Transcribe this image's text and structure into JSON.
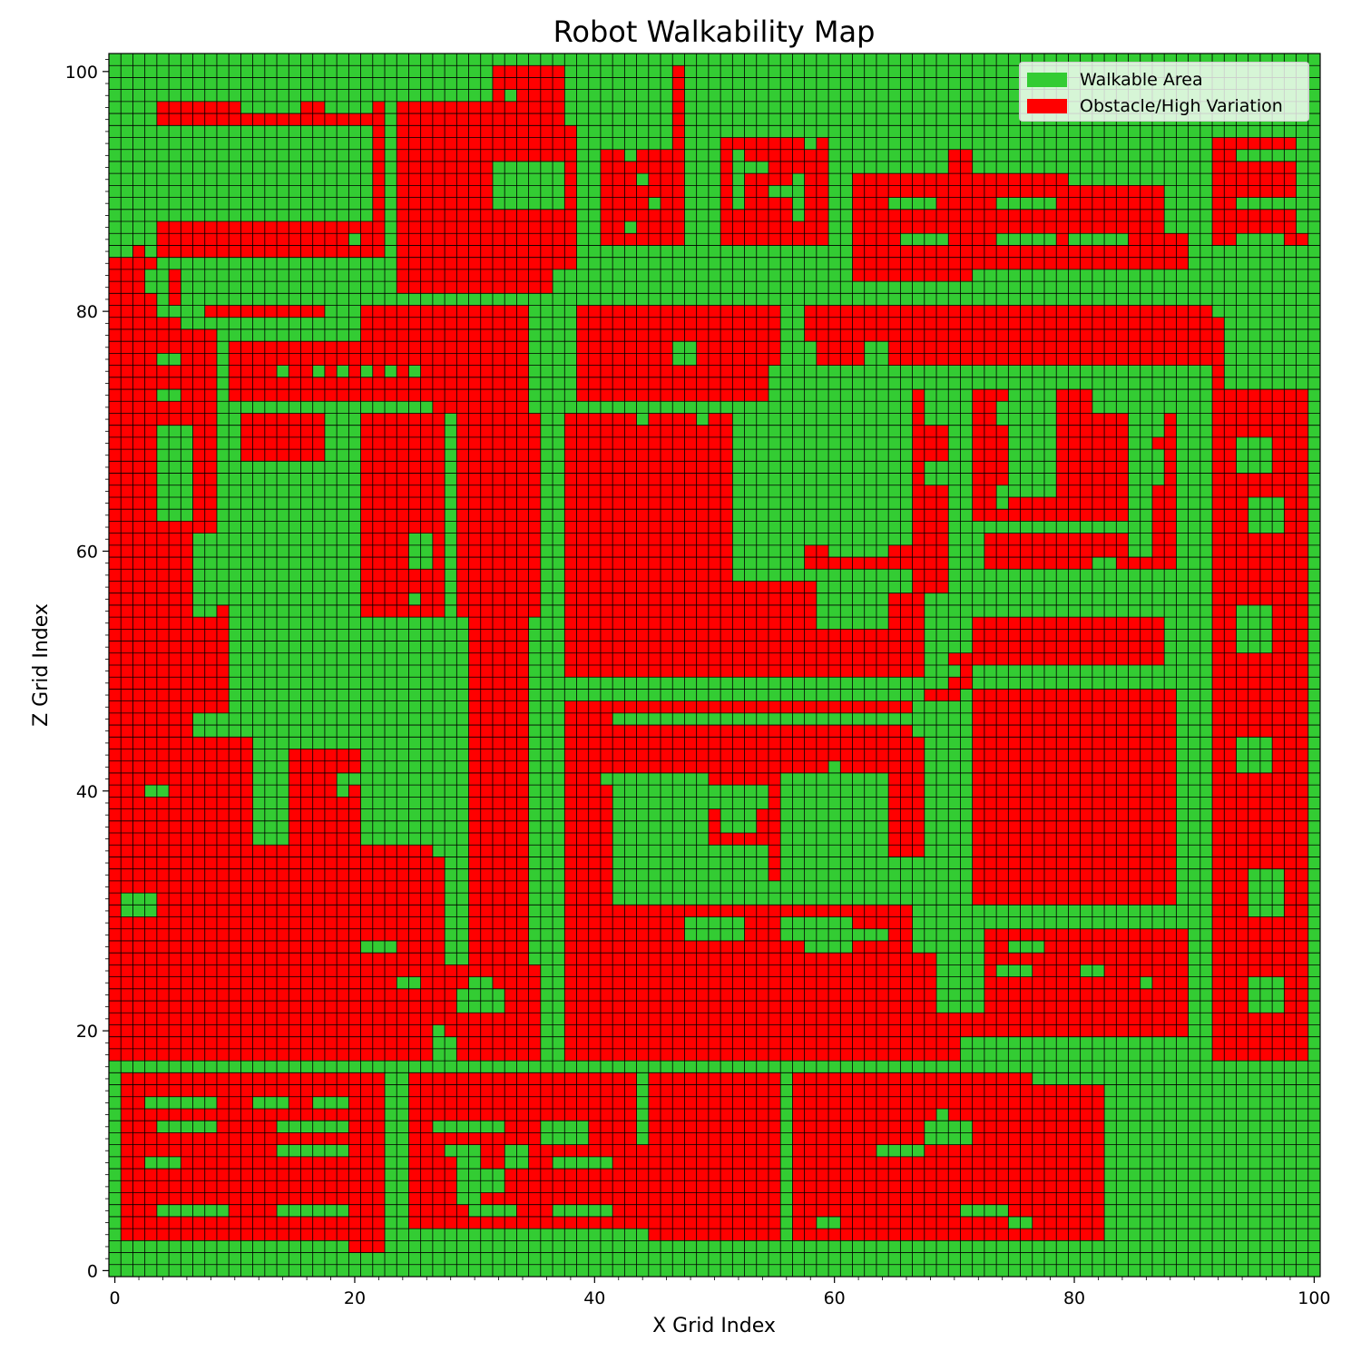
{
  "chart_data": {
    "type": "heatmap",
    "title": "Robot Walkability Map",
    "xlabel": "X Grid Index",
    "ylabel": "Z Grid Index",
    "xlim": [
      -0.5,
      100.5
    ],
    "ylim": [
      -0.5,
      101.5
    ],
    "x_ticks": [
      0,
      20,
      40,
      60,
      80,
      100
    ],
    "y_ticks": [
      0,
      20,
      40,
      60,
      80,
      100
    ],
    "grid_size": {
      "nx": 101,
      "nz": 102
    },
    "categories": [
      {
        "value": 1,
        "name": "Walkable Area",
        "color": "#33cc33"
      },
      {
        "value": 0,
        "name": "Obstacle/High Variation",
        "color": "#ff0000"
      }
    ],
    "legend_position": "upper right",
    "background_value": 1,
    "obstacle_rects": [
      [
        2,
        86,
        2,
        101
      ],
      [
        2,
        80,
        3,
        86
      ],
      [
        0,
        47,
        4,
        85
      ],
      [
        5,
        81,
        6,
        84
      ],
      [
        3,
        81,
        4,
        85
      ],
      [
        4,
        71,
        6,
        80
      ],
      [
        0,
        18,
        7,
        63
      ],
      [
        7,
        47,
        9,
        79
      ],
      [
        9,
        47,
        10,
        56
      ],
      [
        4,
        85,
        23,
        88
      ],
      [
        4,
        96,
        23,
        98
      ],
      [
        19,
        88,
        21,
        96
      ],
      [
        22,
        88,
        23,
        96
      ],
      [
        6,
        71,
        7,
        79
      ],
      [
        24,
        82,
        37,
        98
      ],
      [
        31,
        86,
        38,
        89
      ],
      [
        32,
        96,
        38,
        101
      ],
      [
        24,
        93,
        39,
        96
      ],
      [
        24,
        89,
        39,
        93
      ],
      [
        24,
        84,
        39,
        89
      ],
      [
        41,
        86,
        48,
        94
      ],
      [
        47,
        94,
        48,
        101
      ],
      [
        51,
        86,
        60,
        95
      ],
      [
        62,
        83,
        72,
        92
      ],
      [
        68,
        83,
        72,
        94
      ],
      [
        72,
        84,
        80,
        92
      ],
      [
        80,
        86,
        88,
        91
      ],
      [
        79,
        84,
        90,
        87
      ],
      [
        92,
        86,
        99,
        95
      ],
      [
        92,
        86,
        100,
        87
      ],
      [
        8,
        80,
        18,
        81
      ],
      [
        10,
        73,
        26,
        78
      ],
      [
        21,
        73,
        34,
        81
      ],
      [
        27,
        72,
        35,
        81
      ],
      [
        39,
        73,
        55,
        81
      ],
      [
        48,
        76,
        56,
        81
      ],
      [
        58,
        76,
        92,
        81
      ],
      [
        92,
        73,
        93,
        80
      ],
      [
        11,
        68,
        18,
        72
      ],
      [
        21,
        68,
        28,
        72
      ],
      [
        29,
        55,
        36,
        72
      ],
      [
        21,
        55,
        28,
        68
      ],
      [
        30,
        46,
        35,
        57
      ],
      [
        38,
        50,
        52,
        72
      ],
      [
        52,
        50,
        68,
        55
      ],
      [
        52,
        55,
        68,
        58
      ],
      [
        58,
        59,
        70,
        61
      ],
      [
        67,
        57,
        70,
        66
      ],
      [
        67,
        66,
        70,
        74
      ],
      [
        72,
        63,
        79,
        74
      ],
      [
        79,
        63,
        82,
        74
      ],
      [
        81,
        63,
        85,
        72
      ],
      [
        87,
        62,
        89,
        72
      ],
      [
        73,
        59,
        89,
        62
      ],
      [
        72,
        51,
        88,
        55
      ],
      [
        70,
        49,
        72,
        52
      ],
      [
        68,
        48,
        71,
        49
      ],
      [
        92,
        18,
        100,
        74
      ],
      [
        38,
        47,
        67,
        48
      ],
      [
        38,
        29,
        42,
        47
      ],
      [
        42,
        42,
        67,
        46
      ],
      [
        42,
        29,
        43,
        31
      ],
      [
        50,
        36,
        56,
        42
      ],
      [
        55,
        33,
        56,
        37
      ],
      [
        65,
        35,
        68,
        45
      ],
      [
        38,
        27,
        67,
        31
      ],
      [
        43,
        27,
        67,
        29
      ],
      [
        38,
        22,
        69,
        27
      ],
      [
        38,
        18,
        71,
        22
      ],
      [
        38,
        20,
        90,
        22
      ],
      [
        72,
        31,
        89,
        49
      ],
      [
        73,
        22,
        90,
        29
      ],
      [
        82,
        22,
        90,
        26
      ],
      [
        0,
        36,
        12,
        45
      ],
      [
        15,
        36,
        21,
        44
      ],
      [
        0,
        18,
        27,
        36
      ],
      [
        10,
        21,
        28,
        35
      ],
      [
        18,
        21,
        27,
        28
      ],
      [
        28,
        20,
        35,
        26
      ],
      [
        29,
        18,
        35,
        22
      ],
      [
        30,
        18,
        36,
        26
      ],
      [
        30,
        25,
        35,
        46
      ],
      [
        1,
        3,
        11,
        17
      ],
      [
        11,
        3,
        23,
        17
      ],
      [
        20,
        2,
        23,
        17
      ],
      [
        25,
        4,
        44,
        17
      ],
      [
        26,
        4,
        45,
        11
      ],
      [
        45,
        3,
        56,
        17
      ],
      [
        57,
        3,
        77,
        17
      ],
      [
        57,
        3,
        83,
        9
      ],
      [
        68,
        9,
        83,
        16
      ],
      [
        72,
        13,
        78,
        16
      ]
    ],
    "walkable_rects": [
      [
        4,
        88,
        21,
        96
      ],
      [
        11,
        97,
        16,
        98
      ],
      [
        18,
        97,
        22,
        98
      ],
      [
        3,
        82,
        4,
        84
      ],
      [
        4,
        81,
        5,
        83
      ],
      [
        7,
        55,
        9,
        62
      ],
      [
        8,
        57,
        9,
        60
      ],
      [
        5,
        63,
        7,
        64
      ],
      [
        4,
        76,
        6,
        77
      ],
      [
        4,
        73,
        6,
        74
      ],
      [
        20,
        86,
        21,
        87
      ],
      [
        32,
        89,
        38,
        93
      ],
      [
        33,
        98,
        34,
        99
      ],
      [
        43,
        87,
        44,
        88
      ],
      [
        45,
        89,
        46,
        90
      ],
      [
        44,
        91,
        45,
        92
      ],
      [
        43,
        93,
        44,
        94
      ],
      [
        52,
        89,
        53,
        94
      ],
      [
        53,
        92,
        55,
        93
      ],
      [
        55,
        90,
        57,
        91
      ],
      [
        57,
        88,
        58,
        92
      ],
      [
        58,
        94,
        59,
        95
      ],
      [
        63,
        92,
        70,
        94
      ],
      [
        65,
        89,
        69,
        90
      ],
      [
        66,
        86,
        70,
        87
      ],
      [
        74,
        93,
        79,
        94
      ],
      [
        74,
        89,
        79,
        90
      ],
      [
        74,
        86,
        79,
        87
      ],
      [
        81,
        91,
        84,
        92
      ],
      [
        80,
        86,
        85,
        87
      ],
      [
        94,
        93,
        99,
        94
      ],
      [
        94,
        89,
        99,
        90
      ],
      [
        94,
        86,
        98,
        87
      ],
      [
        14,
        75,
        15,
        76
      ],
      [
        17,
        75,
        18,
        76
      ],
      [
        19,
        75,
        20,
        76
      ],
      [
        21,
        75,
        22,
        76
      ],
      [
        23,
        75,
        24,
        76
      ],
      [
        25,
        75,
        26,
        76
      ],
      [
        47,
        76,
        49,
        78
      ],
      [
        56,
        76,
        59,
        78
      ],
      [
        63,
        76,
        65,
        78
      ],
      [
        44,
        71,
        45,
        72
      ],
      [
        49,
        71,
        50,
        72
      ],
      [
        25,
        59,
        27,
        62
      ],
      [
        25,
        56,
        26,
        57
      ],
      [
        59,
        57,
        67,
        58
      ],
      [
        59,
        54,
        65,
        57
      ],
      [
        60,
        60,
        65,
        63
      ],
      [
        58,
        61,
        61,
        64
      ],
      [
        64,
        61,
        66,
        64
      ],
      [
        68,
        66,
        70,
        68
      ],
      [
        68,
        71,
        70,
        74
      ],
      [
        74,
        71,
        75,
        73
      ],
      [
        74,
        64,
        75,
        66
      ],
      [
        75,
        65,
        79,
        74
      ],
      [
        86,
        70,
        88,
        72
      ],
      [
        87,
        66,
        88,
        69
      ],
      [
        85,
        60,
        87,
        62
      ],
      [
        82,
        59,
        84,
        60
      ],
      [
        70,
        54,
        72,
        55
      ],
      [
        69,
        50,
        71,
        51
      ],
      [
        94,
        67,
        97,
        70
      ],
      [
        95,
        62,
        98,
        65
      ],
      [
        94,
        52,
        97,
        56
      ],
      [
        94,
        42,
        97,
        45
      ],
      [
        95,
        30,
        98,
        34
      ],
      [
        95,
        22,
        98,
        25
      ],
      [
        51,
        37,
        54,
        40
      ],
      [
        50,
        39,
        55,
        41
      ],
      [
        58,
        39,
        59,
        41
      ],
      [
        60,
        42,
        61,
        43
      ],
      [
        43,
        39,
        44,
        42
      ],
      [
        41,
        41,
        42,
        42
      ],
      [
        42,
        38,
        43,
        39
      ],
      [
        48,
        28,
        53,
        30
      ],
      [
        56,
        28,
        58,
        30
      ],
      [
        58,
        27,
        62,
        30
      ],
      [
        62,
        28,
        65,
        29
      ],
      [
        75,
        27,
        78,
        28
      ],
      [
        74,
        25,
        77,
        26
      ],
      [
        81,
        25,
        83,
        26
      ],
      [
        86,
        24,
        87,
        25
      ],
      [
        3,
        40,
        5,
        41
      ],
      [
        19,
        40,
        20,
        42
      ],
      [
        19,
        41,
        22,
        42
      ],
      [
        1,
        30,
        4,
        32
      ],
      [
        21,
        27,
        24,
        28
      ],
      [
        29,
        22,
        33,
        24
      ],
      [
        30,
        24,
        32,
        25
      ],
      [
        24,
        24,
        26,
        25
      ],
      [
        3,
        14,
        9,
        15
      ],
      [
        4,
        12,
        9,
        13
      ],
      [
        3,
        9,
        6,
        10
      ],
      [
        4,
        5,
        10,
        6
      ],
      [
        7,
        5,
        9,
        6
      ],
      [
        12,
        14,
        15,
        15
      ],
      [
        14,
        12,
        20,
        13
      ],
      [
        14,
        10,
        20,
        11
      ],
      [
        14,
        5,
        20,
        6
      ],
      [
        17,
        14,
        20,
        15
      ],
      [
        27,
        12,
        33,
        13
      ],
      [
        28,
        10,
        30,
        11
      ],
      [
        29,
        6,
        31,
        11
      ],
      [
        30,
        7,
        33,
        9
      ],
      [
        33,
        9,
        35,
        11
      ],
      [
        36,
        11,
        40,
        13
      ],
      [
        37,
        9,
        42,
        10
      ],
      [
        37,
        5,
        42,
        6
      ],
      [
        30,
        5,
        34,
        6
      ],
      [
        64,
        10,
        68,
        11
      ],
      [
        68,
        11,
        72,
        13
      ],
      [
        69,
        12,
        70,
        14
      ],
      [
        59,
        4,
        61,
        5
      ],
      [
        71,
        5,
        75,
        6
      ],
      [
        75,
        4,
        77,
        5
      ]
    ]
  }
}
